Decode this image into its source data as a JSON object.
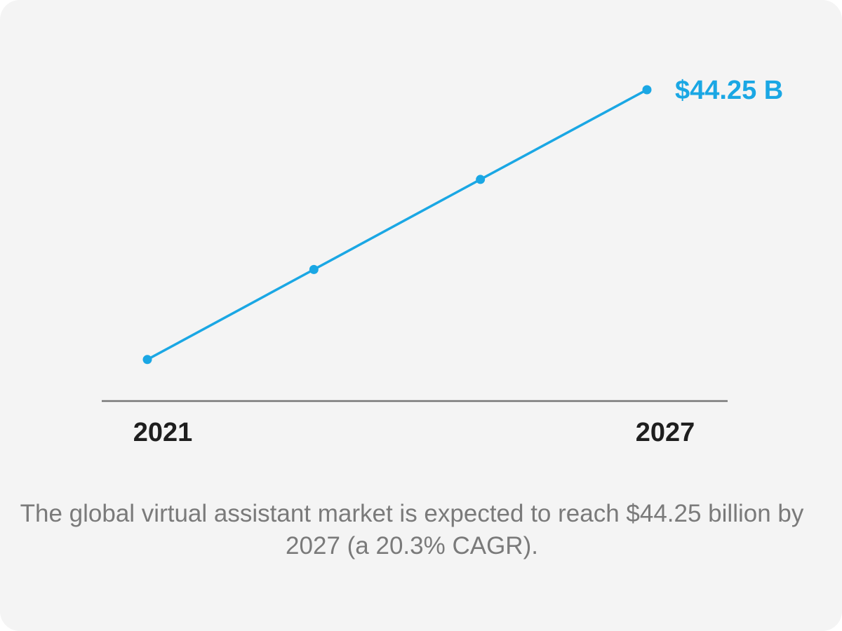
{
  "chart_data": {
    "type": "line",
    "x": [
      2021,
      2023,
      2025,
      2027
    ],
    "series": [
      {
        "values": [
          5.9,
          18.7,
          31.5,
          44.25
        ]
      }
    ],
    "tick_labels": [
      "2021",
      "2027"
    ],
    "end_label": "$44.25 B",
    "xlim": [
      2021,
      2027
    ],
    "ylim": [
      0,
      44.25
    ],
    "grid": false,
    "line_color": "#1aa7e4",
    "axis_color": "#777777"
  },
  "caption": "The global virtual assistant market is expected to reach $44.25 billion by 2027 (a 20.3% CAGR)."
}
